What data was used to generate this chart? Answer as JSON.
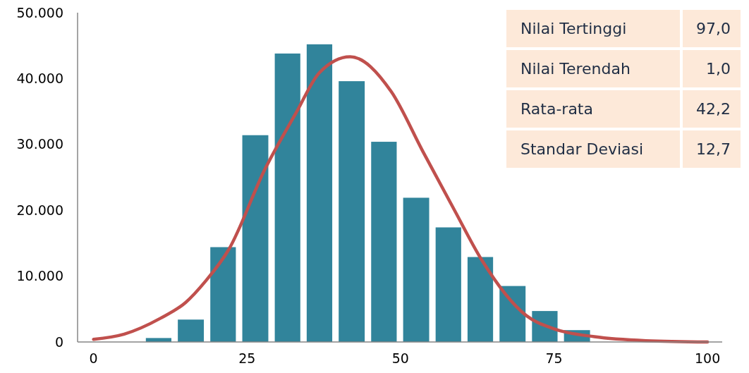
{
  "chart_data": {
    "type": "histogram",
    "bins": [
      8.0,
      13.2,
      18.5,
      23.7,
      29.0,
      34.2,
      39.4,
      44.7,
      49.9,
      55.2,
      60.4,
      65.6,
      70.9,
      76.1,
      81.4
    ],
    "values": [
      600,
      3400,
      14400,
      31400,
      43800,
      45200,
      39600,
      30400,
      21900,
      17400,
      12900,
      8500,
      4700,
      1800
    ],
    "color": "#31849b",
    "series": [
      {
        "type": "line",
        "color": "#c0504d",
        "x": [
          0,
          5,
          10.9,
          15,
          18.3,
          22,
          27.9,
          33,
          36.8,
          41.8,
          48.5,
          53.6,
          58.8,
          63.2,
          70.5,
          75,
          81.6,
          90,
          100
        ],
        "values": [
          400,
          1200,
          3600,
          6000,
          9300,
          14000,
          26200,
          34800,
          40900,
          43300,
          38000,
          29000,
          20000,
          12500,
          4000,
          2000,
          800,
          200,
          0
        ]
      }
    ],
    "xlim": [
      -2.6,
      102.4
    ],
    "xticks": [
      0,
      25,
      50,
      75,
      100
    ],
    "ylim": [
      0,
      50000
    ],
    "yticks": [
      {
        "value": 0,
        "label": "0"
      },
      {
        "value": 10000,
        "label": "10.000"
      },
      {
        "value": 20000,
        "label": "20.000"
      },
      {
        "value": 30000,
        "label": "30.000"
      },
      {
        "value": 40000,
        "label": "40.000"
      },
      {
        "value": 50000,
        "label": "50.000"
      }
    ],
    "annotations": [
      "Nilai Tertinggi",
      "97,0",
      "Nilai Terendah",
      "1,0",
      "Rata-rata",
      "42,2",
      "Standar Deviasi",
      "12,7"
    ],
    "grid": false
  }
}
